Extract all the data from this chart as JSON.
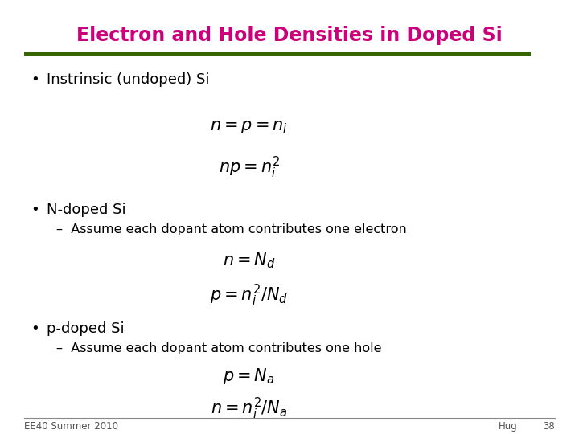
{
  "title": "Electron and Hole Densities in Doped Si",
  "title_color": "#CC007A",
  "title_fontsize": 17,
  "bar_color": "#336600",
  "slide_bg": "#FFFFFF",
  "bullet1": "Instrinsic (undoped) Si",
  "eq1a": "$n = p = n_i$",
  "eq1b": "$np = n_i^2$",
  "bullet2": "N-doped Si",
  "sub2": "–  Assume each dopant atom contributes one electron",
  "eq2a": "$n = N_d$",
  "eq2b": "$p = n_i^2/N_d$",
  "bullet3": "p-doped Si",
  "sub3": "–  Assume each dopant atom contributes one hole",
  "eq3a": "$p = N_a$",
  "eq3b": "$n = n_i^2/N_a$",
  "footer_left": "EE40 Summer 2010",
  "footer_right": "Hug",
  "footer_page": "38",
  "text_color": "#000000",
  "footer_color": "#555555",
  "bullet_fontsize": 13,
  "sub_fontsize": 11.5,
  "eq_fontsize": 15
}
